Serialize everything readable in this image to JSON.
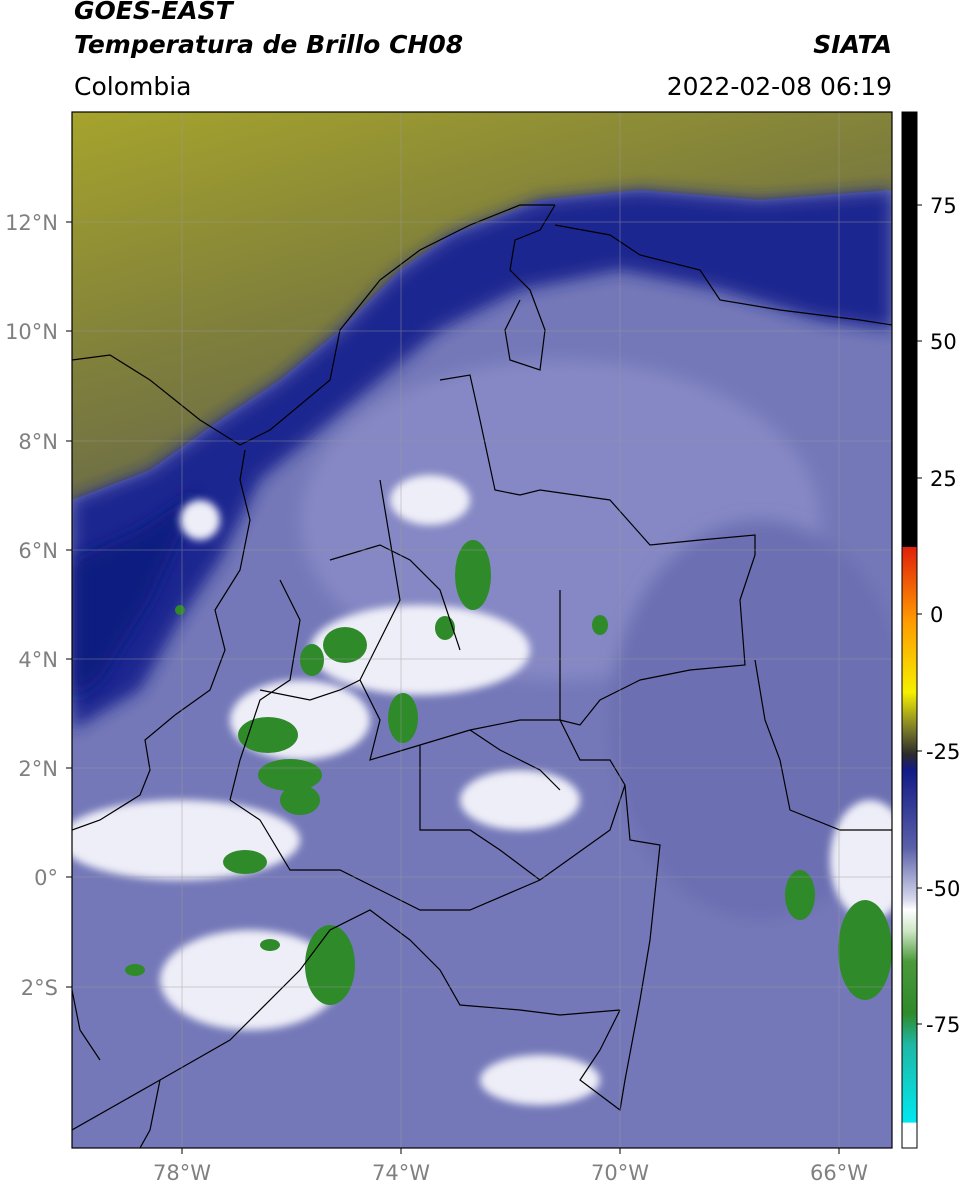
{
  "header": {
    "satellite": "GOES-EAST",
    "product": "Temperatura de Brillo CH08",
    "agency": "SIATA",
    "region": "Colombia",
    "timestamp": "2022-02-08 06:19"
  },
  "map": {
    "lat_labels": [
      "12°N",
      "10°N",
      "8°N",
      "6°N",
      "4°N",
      "2°N",
      "0°",
      "2°S"
    ],
    "lon_labels": [
      "78°W",
      "74°W",
      "70°W",
      "66°W"
    ],
    "lon_range": [
      -80,
      -65
    ],
    "lat_range": [
      -5,
      14
    ]
  },
  "colorbar": {
    "labels": [
      "75",
      "50",
      "25",
      "0",
      "-25",
      "-50",
      "-75"
    ],
    "range": [
      -92,
      90
    ],
    "colors": {
      "warm": "#000000",
      "red": "#e0200b",
      "orange": "#ff9900",
      "yellow": "#f5f000",
      "olive": "#7d7d2a",
      "navy": "#121a86",
      "lavender": "#8a8fc6",
      "white": "#ffffff",
      "green": "#2f8a2a",
      "teal": "#1fb8a4",
      "cyan": "#00e8f0"
    }
  }
}
